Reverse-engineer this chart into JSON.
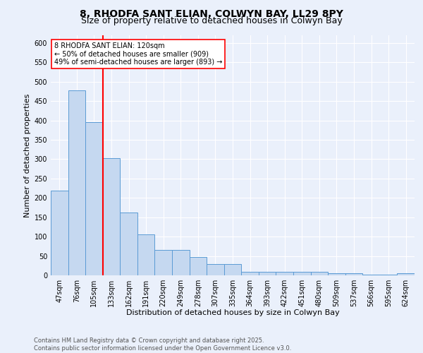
{
  "title_line1": "8, RHODFA SANT ELIAN, COLWYN BAY, LL29 8PY",
  "title_line2": "Size of property relative to detached houses in Colwyn Bay",
  "xlabel": "Distribution of detached houses by size in Colwyn Bay",
  "ylabel": "Number of detached properties",
  "categories": [
    "47sqm",
    "76sqm",
    "105sqm",
    "133sqm",
    "162sqm",
    "191sqm",
    "220sqm",
    "249sqm",
    "278sqm",
    "307sqm",
    "335sqm",
    "364sqm",
    "393sqm",
    "422sqm",
    "451sqm",
    "480sqm",
    "509sqm",
    "537sqm",
    "566sqm",
    "595sqm",
    "624sqm"
  ],
  "values": [
    218,
    478,
    395,
    302,
    163,
    105,
    65,
    65,
    47,
    30,
    30,
    9,
    9,
    9,
    9,
    9,
    5,
    5,
    2,
    2,
    5
  ],
  "bar_color": "#c5d8f0",
  "bar_edge_color": "#5b9bd5",
  "vline_color": "red",
  "vline_x_index": 2,
  "annotation_line1": "8 RHODFA SANT ELIAN: 120sqm",
  "annotation_line2": "← 50% of detached houses are smaller (909)",
  "annotation_line3": "49% of semi-detached houses are larger (893) →",
  "annotation_box_color": "white",
  "annotation_box_edge": "red",
  "annotation_fontsize": 7,
  "ylim": [
    0,
    620
  ],
  "yticks": [
    0,
    50,
    100,
    150,
    200,
    250,
    300,
    350,
    400,
    450,
    500,
    550,
    600
  ],
  "footer_line1": "Contains HM Land Registry data © Crown copyright and database right 2025.",
  "footer_line2": "Contains public sector information licensed under the Open Government Licence v3.0.",
  "bg_color": "#eaf0fb",
  "plot_bg_color": "#eaf0fb",
  "title_fontsize": 10,
  "subtitle_fontsize": 9,
  "axis_label_fontsize": 8,
  "tick_fontsize": 7,
  "footer_fontsize": 6
}
